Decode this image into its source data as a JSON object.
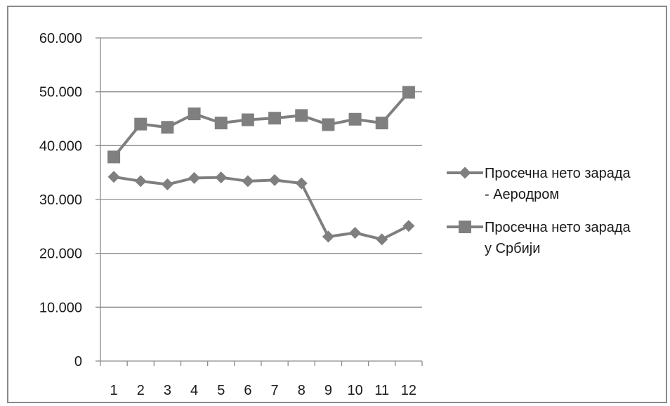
{
  "chart_data": {
    "type": "line",
    "title": "",
    "xlabel": "",
    "ylabel": "",
    "x": [
      "1",
      "2",
      "3",
      "4",
      "5",
      "6",
      "7",
      "8",
      "9",
      "10",
      "11",
      "12"
    ],
    "ylim": [
      0,
      60000
    ],
    "y_ticks": [
      0,
      10000,
      20000,
      30000,
      40000,
      50000,
      60000
    ],
    "y_tick_labels": [
      "0",
      "10.000",
      "20.000",
      "30.000",
      "40.000",
      "50.000",
      "60.000"
    ],
    "grid": true,
    "legend_position": "right",
    "series": [
      {
        "name_line1": "Просечна нето зарада",
        "name_line2": "- Аеродром",
        "marker": "diamond",
        "color": "#7f7f7f",
        "values": [
          34200,
          33400,
          32800,
          34000,
          34100,
          33400,
          33600,
          33000,
          23100,
          23800,
          22600,
          25100
        ]
      },
      {
        "name_line1": "Просечна нето зарада",
        "name_line2": "у Србији",
        "marker": "square",
        "color": "#7f7f7f",
        "values": [
          37900,
          44000,
          43400,
          45900,
          44200,
          44800,
          45100,
          45600,
          43900,
          44900,
          44200,
          49900
        ]
      }
    ]
  }
}
